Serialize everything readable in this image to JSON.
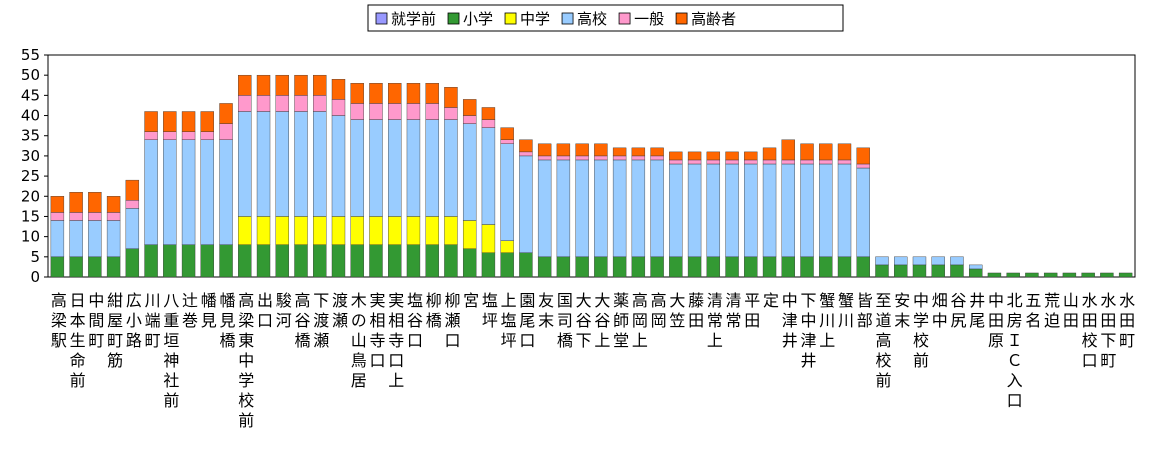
{
  "chart_data": {
    "type": "stacked_bar",
    "categories": [
      "高梁駅",
      "日本生命前",
      "中間町",
      "紺屋町筋",
      "広小路",
      "川端町",
      "八重垣神社前",
      "辻巻",
      "幡見",
      "幡見橋",
      "高梁東中学校前",
      "出口",
      "駿河",
      "高谷橋",
      "下渡瀬",
      "渡瀬",
      "木の山鳥居",
      "実相寺口",
      "実相寺口上",
      "塩谷口",
      "柳橋",
      "柳瀬口",
      "宮",
      "塩坪",
      "上塩坪",
      "園尾口",
      "友末",
      "国司橋",
      "大谷下",
      "大谷上",
      "薬師堂",
      "高岡上",
      "高岡",
      "大笠",
      "藤田",
      "清常上",
      "清常",
      "平田",
      "定",
      "中津井",
      "下中津井",
      "蟹川上",
      "蟹川",
      "皆部",
      "至道高校前",
      "安末",
      "中学校前",
      "畑中",
      "谷尻",
      "井尾",
      "中田原",
      "北房ＩＣ入口",
      "五名",
      "荒迫",
      "山田",
      "水田校口",
      "水田下町",
      "水田町"
    ],
    "series": [
      {
        "name": "就学前",
        "color": "#9999ff",
        "values": [
          0,
          0,
          0,
          0,
          0,
          0,
          0,
          0,
          0,
          0,
          0,
          0,
          0,
          0,
          0,
          0,
          0,
          0,
          0,
          0,
          0,
          0,
          0,
          0,
          0,
          0,
          0,
          0,
          0,
          0,
          0,
          0,
          0,
          0,
          0,
          0,
          0,
          0,
          0,
          0,
          0,
          0,
          0,
          0,
          0,
          0,
          0,
          0,
          0,
          0,
          0,
          0,
          0,
          0,
          0,
          0,
          0,
          0
        ]
      },
      {
        "name": "小学",
        "color": "#339933",
        "values": [
          5,
          5,
          5,
          5,
          7,
          8,
          8,
          8,
          8,
          8,
          8,
          8,
          8,
          8,
          8,
          8,
          8,
          8,
          8,
          8,
          8,
          8,
          7,
          6,
          6,
          6,
          5,
          5,
          5,
          5,
          5,
          5,
          5,
          5,
          5,
          5,
          5,
          5,
          5,
          5,
          5,
          5,
          5,
          5,
          3,
          3,
          3,
          3,
          3,
          2,
          1,
          1,
          1,
          1,
          1,
          1,
          1,
          1
        ]
      },
      {
        "name": "中学",
        "color": "#ffff00",
        "values": [
          0,
          0,
          0,
          0,
          0,
          0,
          0,
          0,
          0,
          0,
          7,
          7,
          7,
          7,
          7,
          7,
          7,
          7,
          7,
          7,
          7,
          7,
          7,
          7,
          3,
          0,
          0,
          0,
          0,
          0,
          0,
          0,
          0,
          0,
          0,
          0,
          0,
          0,
          0,
          0,
          0,
          0,
          0,
          0,
          0,
          0,
          0,
          0,
          0,
          0,
          0,
          0,
          0,
          0,
          0,
          0,
          0,
          0
        ]
      },
      {
        "name": "高校",
        "color": "#99ccff",
        "values": [
          9,
          9,
          9,
          9,
          10,
          26,
          26,
          26,
          26,
          26,
          26,
          26,
          26,
          26,
          26,
          25,
          24,
          24,
          24,
          24,
          24,
          24,
          24,
          24,
          24,
          24,
          24,
          24,
          24,
          24,
          24,
          24,
          24,
          23,
          23,
          23,
          23,
          23,
          23,
          23,
          23,
          23,
          23,
          22,
          2,
          2,
          2,
          2,
          2,
          1,
          0,
          0,
          0,
          0,
          0,
          0,
          0,
          0
        ]
      },
      {
        "name": "一般",
        "color": "#ff99cc",
        "values": [
          2,
          2,
          2,
          2,
          2,
          2,
          2,
          2,
          2,
          4,
          4,
          4,
          4,
          4,
          4,
          4,
          4,
          4,
          4,
          4,
          4,
          3,
          2,
          2,
          1,
          1,
          1,
          1,
          1,
          1,
          1,
          1,
          1,
          1,
          1,
          1,
          1,
          1,
          1,
          1,
          1,
          1,
          1,
          1,
          0,
          0,
          0,
          0,
          0,
          0,
          0,
          0,
          0,
          0,
          0,
          0,
          0,
          0
        ]
      },
      {
        "name": "高齢者",
        "color": "#ff6600",
        "values": [
          4,
          5,
          5,
          4,
          5,
          5,
          5,
          5,
          5,
          5,
          5,
          5,
          5,
          5,
          5,
          5,
          5,
          5,
          5,
          5,
          5,
          5,
          4,
          3,
          3,
          3,
          3,
          3,
          3,
          3,
          2,
          2,
          2,
          2,
          2,
          2,
          2,
          2,
          3,
          5,
          4,
          4,
          4,
          4,
          0,
          0,
          0,
          0,
          0,
          0,
          0,
          0,
          0,
          0,
          0,
          0,
          0,
          0
        ]
      }
    ],
    "ylim": [
      0,
      55
    ],
    "yticks": [
      0,
      5,
      10,
      15,
      20,
      25,
      30,
      35,
      40,
      45,
      50,
      55
    ],
    "grid": false,
    "legend": "top"
  }
}
